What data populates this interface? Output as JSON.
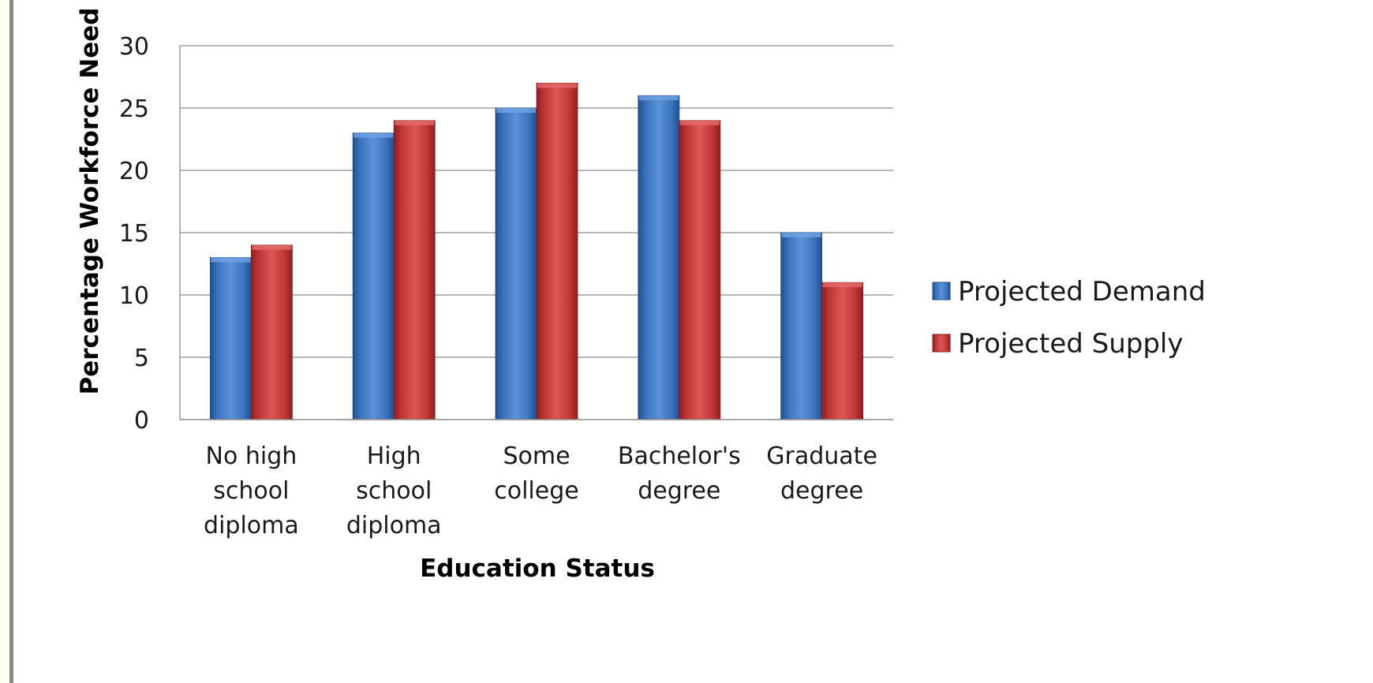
{
  "chart_data": {
    "type": "bar",
    "title": "",
    "xlabel": "Education Status",
    "ylabel": "Percentage Workforce Need",
    "ylim": [
      0,
      30
    ],
    "yticks": [
      0,
      5,
      10,
      15,
      20,
      25,
      30
    ],
    "grid": true,
    "legend_position": "right",
    "categories": [
      [
        "No high",
        "school",
        "diploma"
      ],
      [
        "High",
        "school",
        "diploma"
      ],
      [
        "Some",
        "college"
      ],
      [
        "Bachelor's",
        "degree"
      ],
      [
        "Graduate",
        "degree"
      ]
    ],
    "series": [
      {
        "name": "Projected Demand",
        "color": "#3f78c2",
        "values": [
          13,
          23,
          25,
          26,
          15
        ]
      },
      {
        "name": "Projected Supply",
        "color": "#c23a3a",
        "values": [
          14,
          24,
          27,
          24,
          11
        ]
      }
    ]
  }
}
